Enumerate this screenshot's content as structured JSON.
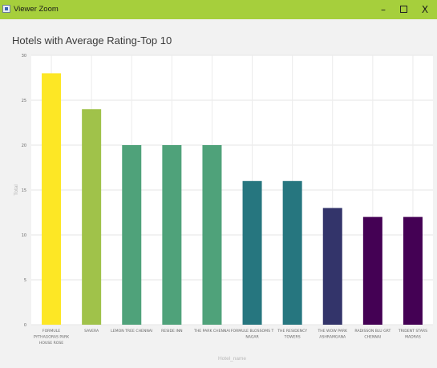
{
  "window": {
    "title": "Viewer Zoom",
    "minimize_glyph": "–",
    "close_glyph": "X",
    "bar_color": "#a6cf3c"
  },
  "chart_data": {
    "type": "bar",
    "title": "Hotels with Average Rating-Top 10",
    "xlabel": "Hotel_name",
    "ylabel": "Total",
    "categories": [
      [
        "FORMULE",
        "PYTHAGORAS PARK",
        "HOUSE ROSE"
      ],
      [
        "SAVERA"
      ],
      [
        "LEMON TREE CHENNAI"
      ],
      [
        "RESIDE INN"
      ],
      [
        "THE PARK CHENNAI"
      ],
      [
        "FORMULE BLOSSOMS T",
        "NAGAR"
      ],
      [
        "THE RESIDENCY",
        "TOWERS"
      ],
      [
        "THE WOW PARK",
        "ASHRAMGANA"
      ],
      [
        "RADISSON BLU GRT",
        "CHENNAI"
      ],
      [
        "TRIDENT STARS",
        "MADRAS"
      ]
    ],
    "values": [
      28,
      24,
      20,
      20,
      20,
      16,
      16,
      13,
      12,
      12
    ],
    "colors": [
      "#fde725",
      "#a0c24a",
      "#4fa27a",
      "#4fa27a",
      "#4fa27a",
      "#26767f",
      "#26767f",
      "#33346a",
      "#440154",
      "#440154"
    ],
    "ylim": [
      0,
      30
    ],
    "yticks": [
      0,
      5,
      10,
      15,
      20,
      25,
      30
    ],
    "grid": true,
    "legend": "none"
  }
}
